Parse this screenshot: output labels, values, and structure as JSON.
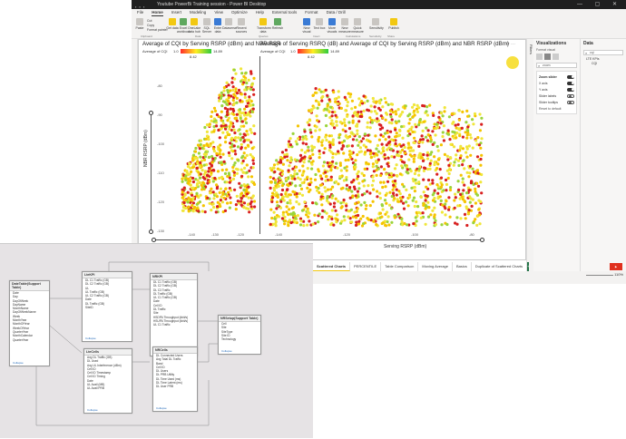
{
  "window": {
    "title": "Youtube PowerBi Training session - Power BI Desktop"
  },
  "menu": [
    "File",
    "Home",
    "Insert",
    "Modeling",
    "View",
    "Optimize",
    "Help",
    "External tools",
    "Format",
    "Data / Drill"
  ],
  "menu_active": "Home",
  "ribbon": {
    "buttons": [
      "Paste",
      "Get data",
      "Excel workbook",
      "OneLake data hub",
      "SQL Server",
      "Enter data",
      "Dataverse",
      "Recent sources",
      "Transform data",
      "Refresh",
      "New visual",
      "Text box",
      "More visuals",
      "New measure",
      "Quick measure",
      "Sensitivity",
      "Publish"
    ],
    "small": [
      "Cut",
      "Copy",
      "Format painter"
    ],
    "groups": [
      "Clipboard",
      "Data",
      "Queries",
      "Insert",
      "Calculations",
      "Sensitivity",
      "Share"
    ]
  },
  "chart_left": {
    "title": "Average of CQI by Serving RSRP (dBm) and NBR RSR",
    "legend_label": "Average of CQI",
    "legend_min": "1.0",
    "legend_mid": "8.42",
    "legend_max": "14.89",
    "y_label": "NBR RSRP (dBm)",
    "y_ticks": [
      "-80",
      "-90",
      "-100",
      "-110",
      "-120",
      "-130"
    ],
    "x_ticks": [
      "-140",
      "-130",
      "-120"
    ]
  },
  "chart_right": {
    "title": "Average of Serving RSRQ (dB) and Average of CQI by Serving RSRP (dBm) and NBR RSRP (dBm)",
    "legend_label": "Average of CQI",
    "legend_min": "1.0",
    "legend_mid": "8.42",
    "legend_max": "14.89",
    "x_label": "Serving RSRP (dBm)",
    "x_ticks": [
      "-140",
      "-120",
      "-100",
      "-80"
    ]
  },
  "visualizations": {
    "title": "Visualizations",
    "subtitle": "Format visual",
    "search": "zoom",
    "section": "Zoom slider",
    "toggles": [
      {
        "label": "X axis",
        "on": true
      },
      {
        "label": "Y axis",
        "on": true
      },
      {
        "label": "Slider labels",
        "on": false
      },
      {
        "label": "Slider tooltips",
        "on": false
      }
    ],
    "reset": "Reset to default"
  },
  "data_pane": {
    "title": "Data",
    "search": "cqi",
    "items": [
      "LTE KPIs",
      "CQI"
    ]
  },
  "filters_label": "Filters",
  "tabs": [
    "Scattered Charts",
    "PERCENTILE",
    "Table Comparison",
    "Moving Average",
    "Basics",
    "Duplicate of Scattered Charts"
  ],
  "tab_active": "Scattered Charts",
  "tab_add": "+",
  "status": {
    "zoom": "110%"
  },
  "model_tables": [
    {
      "name": "DateTable(Support Table)",
      "fields": [
        "Date",
        "Day",
        "DayOfWeek",
        "DayName",
        "MonthName",
        "DayOfWeekName",
        "Week",
        "MonthYear",
        "MonthOfYear",
        "WeekOfYear",
        "QuarterYear",
        "MonthCalendar",
        "QuarterYear"
      ]
    },
    {
      "name": "LteKPI",
      "fields": [
        "DL C1 Traffic (GB)",
        "DL C2 Traffic (GB)",
        "UL",
        "UL Traffic (GB)",
        "UL C2 Traffic (GB)",
        "Date",
        "DL Traffic (GB)",
        "SiteID"
      ]
    },
    {
      "name": "NRKPI",
      "fields": [
        "DL C1 Traffic (GB)",
        "DL C2 Traffic (GB)",
        "DL C3 Traffic",
        "DL Traffic (GB)",
        "UL C1 Traffic (GB)",
        "Date",
        "Cell ID",
        "DL Traffic",
        "Site",
        "HSDPA Throughput (kbit/s)",
        "HSUPA Throughput (kbit/s)",
        "UL C1 Traffic"
      ]
    },
    {
      "name": "NRSetup(Support Table)",
      "fields": [
        "Cell",
        "Site",
        "SiteType",
        "Site ID",
        "Technology"
      ]
    },
    {
      "name": "LteCells",
      "fields": [
        "Avg DL Traffic (GB)",
        "DL Used",
        "Avg UL Interference (dBm)",
        "Cell ID",
        "Cell ID Timestamp",
        "Cell ID Timing",
        "Date",
        "UL Avail (MB)",
        "UL Avail PRB"
      ]
    },
    {
      "name": "NRCells",
      "fields": [
        "DL Connected Users",
        "Avg Total DL Traffic",
        "Band",
        "Cell ID",
        "DL Users",
        "DL PRB Utility",
        "DL Time Used (ms)",
        "DL Time Latent (ms)",
        "DL User PRB"
      ]
    }
  ],
  "collapse_label": "Collapse"
}
